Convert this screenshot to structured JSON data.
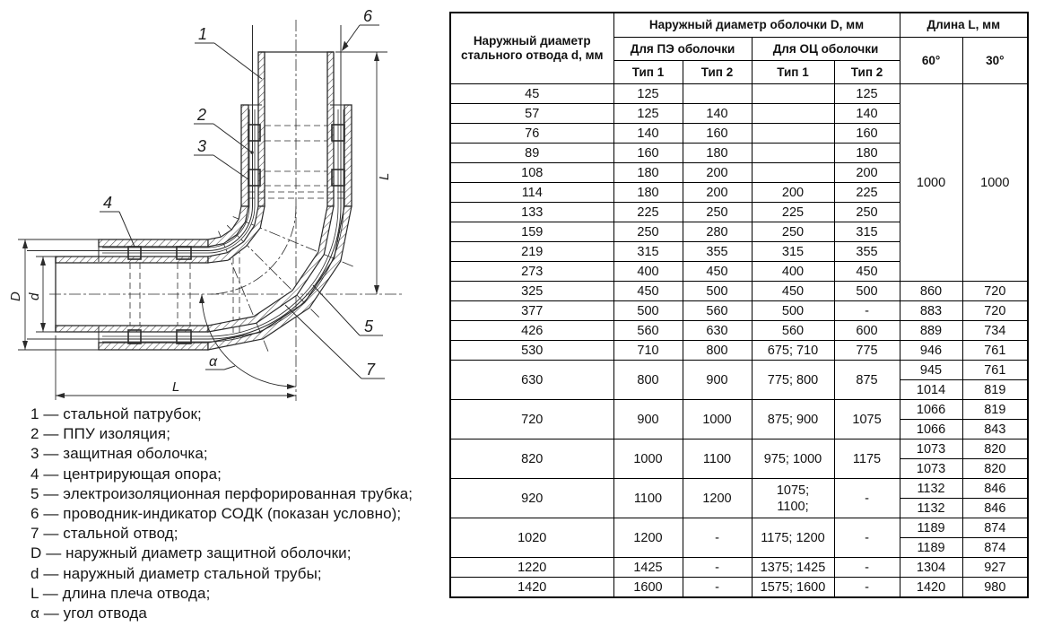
{
  "colors": {
    "line": "#2b2b2b",
    "table_border": "#000000",
    "background": "#ffffff"
  },
  "drawing": {
    "labels": {
      "p1": "1",
      "p2": "2",
      "p3": "3",
      "p4": "4",
      "p5": "5",
      "p6": "6",
      "p7": "7",
      "dimD": "D",
      "dimd": "d",
      "dimL": "L",
      "alpha": "α"
    }
  },
  "legend": {
    "items": [
      "1 — стальной патрубок;",
      "2 — ППУ изоляция;",
      "3 — защитная оболочка;",
      "4 — центрирующая опора;",
      "5 — электроизоляционная перфорированная трубка;",
      "6 — проводник-индикатор СОДК (показан условно);",
      "7 — стальной отвод;",
      "D — наружный диаметр защитной оболочки;",
      "d — наружный диаметр стальной трубы;",
      "L — длина плеча отвода;",
      "α — угол отвода"
    ]
  },
  "table": {
    "header": {
      "col_d": "Наружный диаметр стального отвода d, мм",
      "group_D": "Наружный диаметр оболочки D, мм",
      "group_pe": "Для ПЭ оболочки",
      "group_oc": "Для ОЦ оболочки",
      "type1": "Тип 1",
      "type2": "Тип 2",
      "group_L": "Длина L, мм",
      "deg60": "60°",
      "deg30": "30°"
    },
    "rows": [
      {
        "cells": [
          {
            "v": "45"
          },
          {
            "v": "125"
          },
          {
            "v": ""
          },
          {
            "v": ""
          },
          {
            "v": "125"
          },
          {
            "v": "1000",
            "rs": 10
          },
          {
            "v": "1000",
            "rs": 10
          }
        ]
      },
      {
        "cells": [
          {
            "v": "57"
          },
          {
            "v": "125"
          },
          {
            "v": "140"
          },
          {
            "v": ""
          },
          {
            "v": "140"
          }
        ]
      },
      {
        "cells": [
          {
            "v": "76"
          },
          {
            "v": "140"
          },
          {
            "v": "160"
          },
          {
            "v": ""
          },
          {
            "v": "160"
          }
        ]
      },
      {
        "cells": [
          {
            "v": "89"
          },
          {
            "v": "160"
          },
          {
            "v": "180"
          },
          {
            "v": ""
          },
          {
            "v": "180"
          }
        ]
      },
      {
        "cells": [
          {
            "v": "108"
          },
          {
            "v": "180"
          },
          {
            "v": "200"
          },
          {
            "v": ""
          },
          {
            "v": "200"
          }
        ]
      },
      {
        "cells": [
          {
            "v": "114"
          },
          {
            "v": "180"
          },
          {
            "v": "200"
          },
          {
            "v": "200"
          },
          {
            "v": "225"
          }
        ]
      },
      {
        "cells": [
          {
            "v": "133"
          },
          {
            "v": "225"
          },
          {
            "v": "250"
          },
          {
            "v": "225"
          },
          {
            "v": "250"
          }
        ]
      },
      {
        "cells": [
          {
            "v": "159"
          },
          {
            "v": "250"
          },
          {
            "v": "280"
          },
          {
            "v": "250"
          },
          {
            "v": "315"
          }
        ]
      },
      {
        "cells": [
          {
            "v": "219"
          },
          {
            "v": "315"
          },
          {
            "v": "355"
          },
          {
            "v": "315"
          },
          {
            "v": "355"
          }
        ]
      },
      {
        "cells": [
          {
            "v": "273"
          },
          {
            "v": "400"
          },
          {
            "v": "450"
          },
          {
            "v": "400"
          },
          {
            "v": "450"
          }
        ]
      },
      {
        "cells": [
          {
            "v": "325"
          },
          {
            "v": "450"
          },
          {
            "v": "500"
          },
          {
            "v": "450"
          },
          {
            "v": "500"
          },
          {
            "v": "860"
          },
          {
            "v": "720"
          }
        ]
      },
      {
        "cells": [
          {
            "v": "377"
          },
          {
            "v": "500"
          },
          {
            "v": "560"
          },
          {
            "v": "500"
          },
          {
            "v": "-"
          },
          {
            "v": "883"
          },
          {
            "v": "720"
          }
        ]
      },
      {
        "cells": [
          {
            "v": "426"
          },
          {
            "v": "560"
          },
          {
            "v": "630"
          },
          {
            "v": "560"
          },
          {
            "v": "600"
          },
          {
            "v": "889"
          },
          {
            "v": "734"
          }
        ]
      },
      {
        "cells": [
          {
            "v": "530"
          },
          {
            "v": "710"
          },
          {
            "v": "800"
          },
          {
            "v": "675; 710"
          },
          {
            "v": "775"
          },
          {
            "v": "946"
          },
          {
            "v": "761"
          }
        ]
      },
      {
        "cells": [
          {
            "v": "630",
            "rs": 2
          },
          {
            "v": "800",
            "rs": 2
          },
          {
            "v": "900",
            "rs": 2
          },
          {
            "v": "775; 800",
            "rs": 2
          },
          {
            "v": "875",
            "rs": 2
          },
          {
            "v": "945"
          },
          {
            "v": "761"
          }
        ]
      },
      {
        "cells": [
          {
            "v": "1014"
          },
          {
            "v": "819"
          }
        ]
      },
      {
        "cells": [
          {
            "v": "720",
            "rs": 2
          },
          {
            "v": "900",
            "rs": 2
          },
          {
            "v": "1000",
            "rs": 2
          },
          {
            "v": "875; 900",
            "rs": 2
          },
          {
            "v": "1075",
            "rs": 2
          },
          {
            "v": "1066"
          },
          {
            "v": "819"
          }
        ]
      },
      {
        "cells": [
          {
            "v": "1066"
          },
          {
            "v": "843"
          }
        ]
      },
      {
        "cells": [
          {
            "v": "820",
            "rs": 2
          },
          {
            "v": "1000",
            "rs": 2
          },
          {
            "v": "1100",
            "rs": 2
          },
          {
            "v": "975; 1000",
            "rs": 2
          },
          {
            "v": "1175",
            "rs": 2
          },
          {
            "v": "1073"
          },
          {
            "v": "820"
          }
        ]
      },
      {
        "cells": [
          {
            "v": "1073"
          },
          {
            "v": "820"
          }
        ]
      },
      {
        "cells": [
          {
            "v": "920",
            "rs": 2
          },
          {
            "v": "1100",
            "rs": 2
          },
          {
            "v": "1200",
            "rs": 2
          },
          {
            "v": "1075;\n1100;",
            "rs": 2
          },
          {
            "v": "-",
            "rs": 2
          },
          {
            "v": "1132"
          },
          {
            "v": "846"
          }
        ]
      },
      {
        "cells": [
          {
            "v": "1132"
          },
          {
            "v": "846"
          }
        ]
      },
      {
        "cells": [
          {
            "v": "1020",
            "rs": 2
          },
          {
            "v": "1200",
            "rs": 2
          },
          {
            "v": "-",
            "rs": 2
          },
          {
            "v": "1175; 1200",
            "rs": 2
          },
          {
            "v": "-",
            "rs": 2
          },
          {
            "v": "1189"
          },
          {
            "v": "874"
          }
        ]
      },
      {
        "cells": [
          {
            "v": "1189"
          },
          {
            "v": "874"
          }
        ]
      },
      {
        "cells": [
          {
            "v": "1220"
          },
          {
            "v": "1425"
          },
          {
            "v": "-"
          },
          {
            "v": "1375; 1425"
          },
          {
            "v": "-"
          },
          {
            "v": "1304"
          },
          {
            "v": "927"
          }
        ]
      },
      {
        "cells": [
          {
            "v": "1420"
          },
          {
            "v": "1600"
          },
          {
            "v": "-"
          },
          {
            "v": "1575; 1600"
          },
          {
            "v": "-"
          },
          {
            "v": "1420"
          },
          {
            "v": "980"
          }
        ]
      }
    ]
  }
}
